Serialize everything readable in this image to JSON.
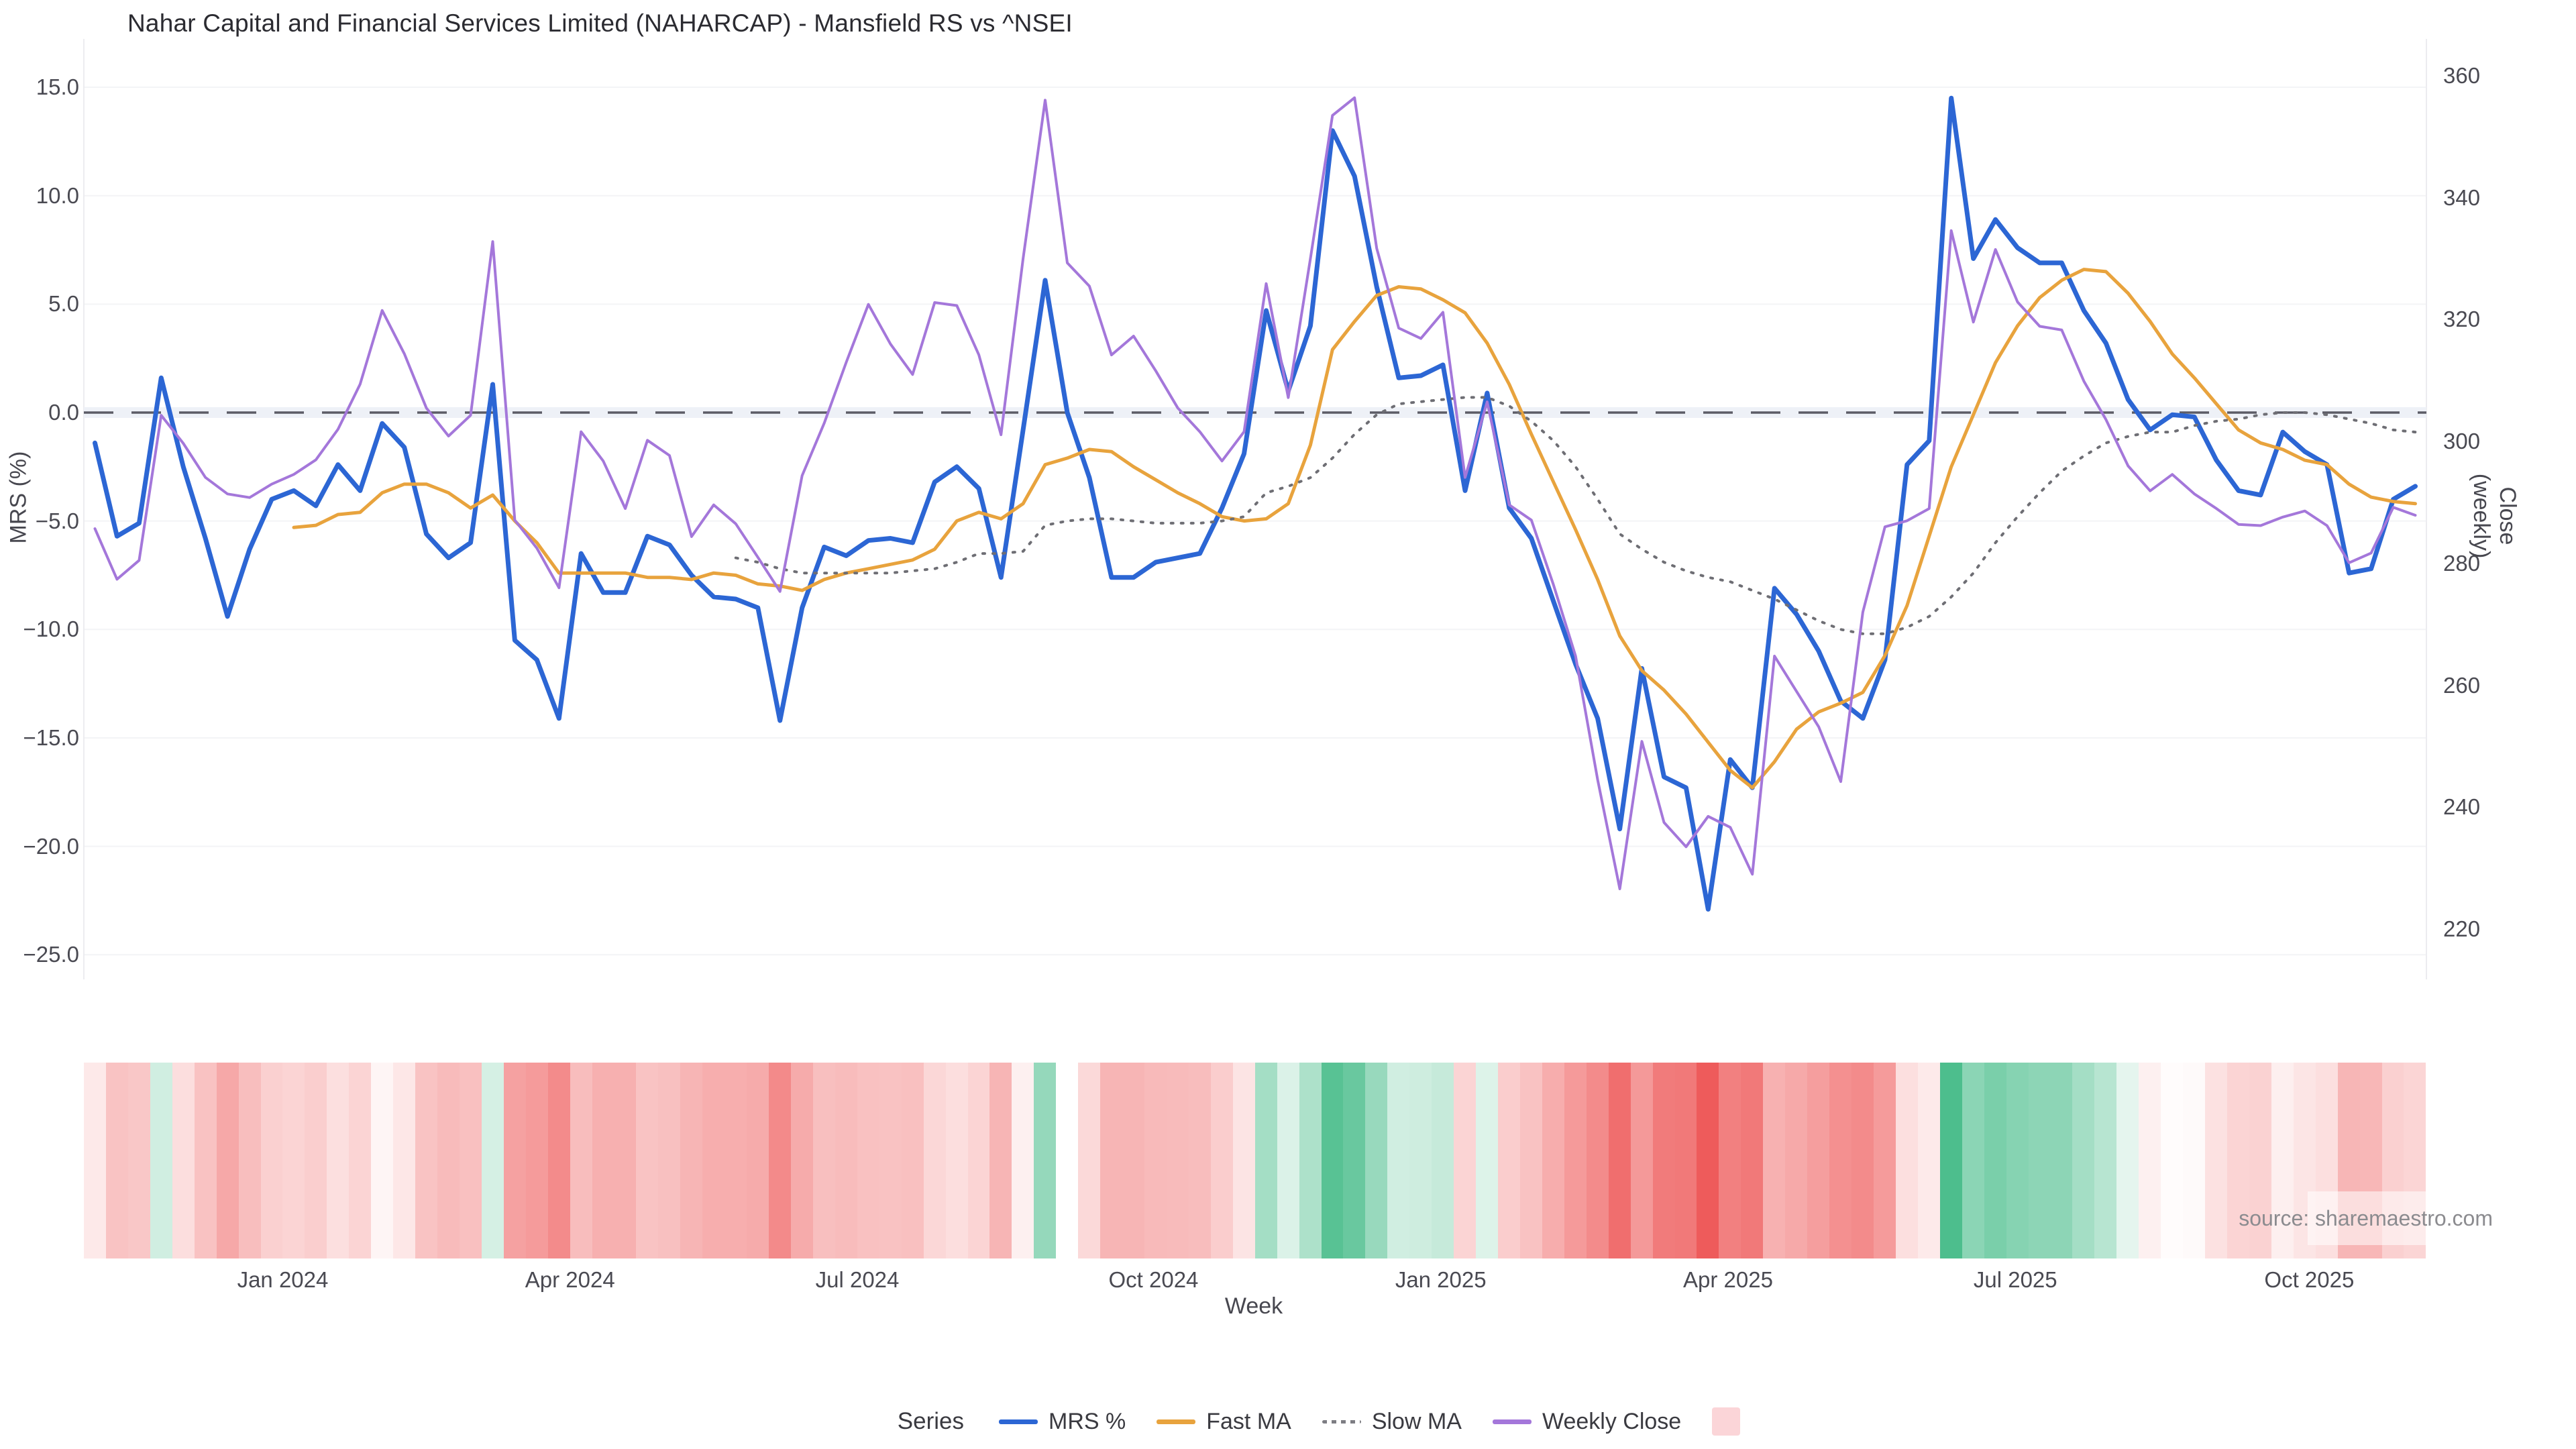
{
  "header": {
    "title": "Nahar Capital and Financial Services Limited (NAHARCAP) - Mansfield RS vs ^NSEI"
  },
  "source_note": "source: sharemaestro.com",
  "axes": {
    "left": {
      "label": "MRS (%)",
      "ticks": [
        "15.0",
        "10.0",
        "5.0",
        "0.0",
        "−5.0",
        "−10.0",
        "−15.0",
        "−20.0",
        "−25.0"
      ],
      "tick_values": [
        15,
        10,
        5,
        0,
        -5,
        -10,
        -15,
        -20,
        -25
      ]
    },
    "right": {
      "label": "Close (weekly)",
      "ticks": [
        "360",
        "340",
        "320",
        "300",
        "280",
        "260",
        "240",
        "220"
      ],
      "tick_values": [
        360,
        340,
        320,
        300,
        280,
        260,
        240,
        220
      ]
    },
    "x": {
      "label": "Week",
      "ticks": [
        {
          "label": "Jan 2024",
          "week": 8.5
        },
        {
          "label": "Apr 2024",
          "week": 21.5
        },
        {
          "label": "Jul 2024",
          "week": 34.5
        },
        {
          "label": "Oct 2024",
          "week": 47.9
        },
        {
          "label": "Jan 2025",
          "week": 60.9
        },
        {
          "label": "Apr 2025",
          "week": 73.9
        },
        {
          "label": "Jul 2025",
          "week": 86.9
        },
        {
          "label": "Oct 2025",
          "week": 100.2
        }
      ]
    }
  },
  "legend": {
    "title": "Series",
    "items": [
      {
        "label": "MRS %",
        "swatch": "line",
        "color": "#2c66d4"
      },
      {
        "label": "Fast MA",
        "swatch": "line",
        "color": "#e8a33d"
      },
      {
        "label": "Slow MA",
        "swatch": "dotted",
        "color": "#7d7d83"
      },
      {
        "label": "Weekly Close",
        "swatch": "line",
        "color": "#a477da"
      },
      {
        "label": "",
        "swatch": "square",
        "color": "#fbd5d8"
      }
    ]
  },
  "chart_data": {
    "type": "line",
    "title": "Nahar Capital and Financial Services Limited (NAHARCAP) - Mansfield RS vs ^NSEI",
    "xlabel": "Week",
    "ylabel_left": "MRS (%)",
    "ylabel_right": "Close (weekly)",
    "x_unit": "week_index",
    "n_weeks": 106,
    "ylim_left": [
      -26.0,
      17.3
    ],
    "ylim_right": [
      212,
      366
    ],
    "zero_line": 0,
    "grid": "horizontal-faint",
    "legend_position": "bottom-center",
    "series": [
      {
        "name": "MRS %",
        "axis": "left",
        "color": "#2c66d4",
        "style": "solid",
        "width": 7,
        "values": [
          -1.4,
          -5.7,
          -5.1,
          1.6,
          -2.5,
          -5.8,
          -9.4,
          -6.3,
          -4.0,
          -3.6,
          -4.3,
          -2.4,
          -3.6,
          -0.5,
          -1.6,
          -5.6,
          -6.7,
          -6.0,
          1.3,
          -10.5,
          -11.4,
          -14.1,
          -6.5,
          -8.3,
          -8.3,
          -5.7,
          -6.1,
          -7.5,
          -8.5,
          -8.6,
          -9.0,
          -14.2,
          -9.0,
          -6.2,
          -6.6,
          -5.9,
          -5.8,
          -6.0,
          -3.2,
          -2.5,
          -3.5,
          -7.6,
          -0.8,
          6.1,
          0.0,
          -3.0,
          -7.6,
          -7.6,
          -6.9,
          -6.7,
          -6.5,
          -4.4,
          -1.9,
          4.7,
          1.0,
          4.0,
          13.0,
          10.9,
          5.8,
          1.6,
          1.7,
          2.2,
          -3.6,
          0.9,
          -4.4,
          -5.8,
          -8.7,
          -11.6,
          -14.1,
          -19.2,
          -11.8,
          -16.8,
          -17.3,
          -22.9,
          -16.0,
          -17.3,
          -8.1,
          -9.3,
          -11.0,
          -13.3,
          -14.1,
          -11.4,
          -2.4,
          -1.3,
          14.5,
          7.1,
          8.9,
          7.6,
          6.9,
          6.9,
          4.7,
          3.2,
          0.6,
          -0.8,
          -0.1,
          -0.2,
          -2.2,
          -3.6,
          -3.8,
          -0.9,
          -1.8,
          -2.4,
          -7.4,
          -7.2,
          -4.0,
          -3.4
        ]
      },
      {
        "name": "Fast MA",
        "axis": "left",
        "color": "#e8a33d",
        "style": "solid",
        "width": 5,
        "values": [
          null,
          null,
          null,
          null,
          null,
          null,
          null,
          null,
          null,
          -5.3,
          -5.2,
          -4.7,
          -4.6,
          -3.7,
          -3.3,
          -3.3,
          -3.7,
          -4.4,
          -3.8,
          -5.0,
          -6.0,
          -7.4,
          -7.4,
          -7.4,
          -7.4,
          -7.6,
          -7.6,
          -7.7,
          -7.4,
          -7.5,
          -7.9,
          -8.0,
          -8.2,
          -7.7,
          -7.4,
          -7.2,
          -7.0,
          -6.8,
          -6.3,
          -5.0,
          -4.6,
          -4.9,
          -4.2,
          -2.4,
          -2.1,
          -1.7,
          -1.8,
          -2.5,
          -3.1,
          -3.7,
          -4.2,
          -4.8,
          -5.0,
          -4.9,
          -4.2,
          -1.5,
          2.9,
          4.2,
          5.4,
          5.8,
          5.7,
          5.2,
          4.6,
          3.2,
          1.3,
          -1.0,
          -3.2,
          -5.4,
          -7.7,
          -10.3,
          -11.9,
          -12.8,
          -13.9,
          -15.2,
          -16.5,
          -17.3,
          -16.1,
          -14.6,
          -13.8,
          -13.4,
          -12.9,
          -11.2,
          -8.9,
          -5.7,
          -2.5,
          -0.1,
          2.3,
          4.0,
          5.3,
          6.1,
          6.6,
          6.5,
          5.5,
          4.2,
          2.7,
          1.6,
          0.4,
          -0.8,
          -1.4,
          -1.7,
          -2.2,
          -2.4,
          -3.3,
          -3.9,
          -4.1,
          -4.2
        ]
      },
      {
        "name": "Slow MA",
        "axis": "left",
        "color": "#6e6e74",
        "style": "dotted",
        "width": 4,
        "values": [
          null,
          null,
          null,
          null,
          null,
          null,
          null,
          null,
          null,
          null,
          null,
          null,
          null,
          null,
          null,
          null,
          null,
          null,
          null,
          null,
          null,
          null,
          null,
          null,
          null,
          null,
          null,
          null,
          null,
          -6.7,
          -6.9,
          -7.2,
          -7.4,
          -7.4,
          -7.4,
          -7.4,
          -7.4,
          -7.3,
          -7.2,
          -6.9,
          -6.5,
          -6.5,
          -6.4,
          -5.2,
          -5.0,
          -4.9,
          -4.9,
          -5.0,
          -5.1,
          -5.1,
          -5.1,
          -5.0,
          -4.8,
          -3.7,
          -3.4,
          -3.0,
          -2.1,
          -1.0,
          -0.1,
          0.4,
          0.5,
          0.6,
          0.7,
          0.7,
          0.3,
          -0.4,
          -1.3,
          -2.5,
          -4.0,
          -5.6,
          -6.3,
          -6.9,
          -7.3,
          -7.6,
          -7.8,
          -8.2,
          -8.6,
          -9.1,
          -9.6,
          -10.0,
          -10.2,
          -10.2,
          -9.9,
          -9.4,
          -8.5,
          -7.4,
          -6.0,
          -4.8,
          -3.7,
          -2.7,
          -2.0,
          -1.4,
          -1.1,
          -0.9,
          -0.9,
          -0.6,
          -0.4,
          -0.3,
          -0.1,
          0.0,
          0.0,
          -0.1,
          -0.3,
          -0.5,
          -0.8,
          -0.9
        ]
      },
      {
        "name": "Weekly Close",
        "axis": "right",
        "color": "#a477da",
        "style": "solid",
        "width": 4,
        "values": [
          285.7,
          277.4,
          280.5,
          304.3,
          299.7,
          294.1,
          291.4,
          290.8,
          293.0,
          294.6,
          297.0,
          302.0,
          309.4,
          321.5,
          314.4,
          305.5,
          300.9,
          304.3,
          332.8,
          287.1,
          282.5,
          276.0,
          301.6,
          296.8,
          289.0,
          300.2,
          297.7,
          284.4,
          289.6,
          286.5,
          281.0,
          275.4,
          294.4,
          303.0,
          313.0,
          322.5,
          316.0,
          311.0,
          322.8,
          322.3,
          314.2,
          301.1,
          330.0,
          356.0,
          329.3,
          325.5,
          314.2,
          317.3,
          311.6,
          305.5,
          301.6,
          296.8,
          301.6,
          325.9,
          307.2,
          330.0,
          353.5,
          356.4,
          331.7,
          318.6,
          316.9,
          321.2,
          294.1,
          306.5,
          289.6,
          287.1,
          276.5,
          264.8,
          244.5,
          226.6,
          250.8,
          237.5,
          233.5,
          238.5,
          236.7,
          229.0,
          264.8,
          259.0,
          253.2,
          244.2,
          272.0,
          286.0,
          287.0,
          289.0,
          334.6,
          319.6,
          331.5,
          322.9,
          318.9,
          318.3,
          309.9,
          303.6,
          296.0,
          291.9,
          294.6,
          291.4,
          289.0,
          286.4,
          286.2,
          287.6,
          288.6,
          286.2,
          280.1,
          281.7,
          289.2,
          287.9
        ]
      }
    ],
    "heatmap": {
      "derived_from_series": "MRS %",
      "negative_color": "#ee5a5a",
      "positive_color": "#4dbe8d",
      "neutral_color": "#ffffff",
      "neg_scale_min": -23,
      "pos_scale_max": 14.5
    }
  },
  "colors": {
    "zero_dash": "#5c5c66",
    "zero_band": "#eef1f7",
    "grid": "#f3f4f6",
    "pane_edge": "#ececf0"
  }
}
